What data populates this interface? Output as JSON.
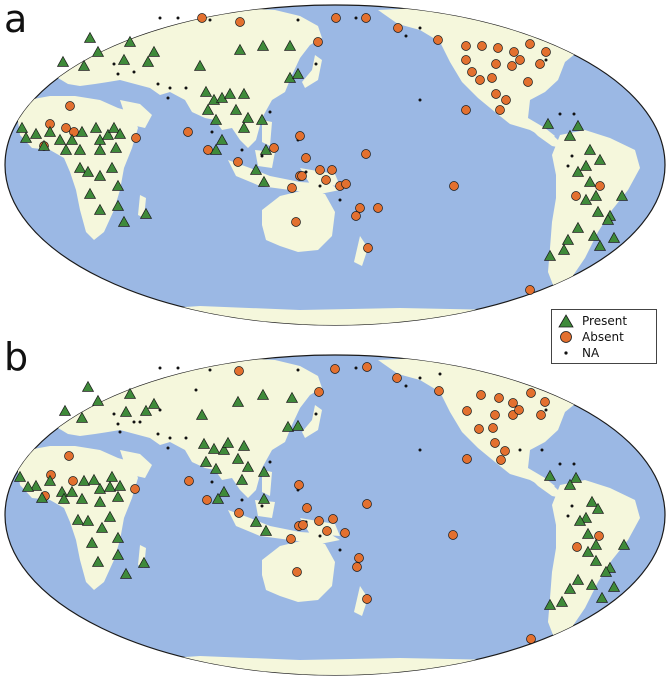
{
  "panels": [
    {
      "label": "a"
    },
    {
      "label": "b"
    }
  ],
  "legend": {
    "present": "Present",
    "absent": "Absent",
    "na": "NA"
  },
  "colors": {
    "ocean": "#9bb8e4",
    "land": "#f5f7dc",
    "present": "#3f8a3a",
    "absent": "#e3702f",
    "na": "#111111",
    "outline": "#1a1a1a"
  },
  "marker_names": [
    "present-marker",
    "absent-marker",
    "na-marker"
  ]
}
